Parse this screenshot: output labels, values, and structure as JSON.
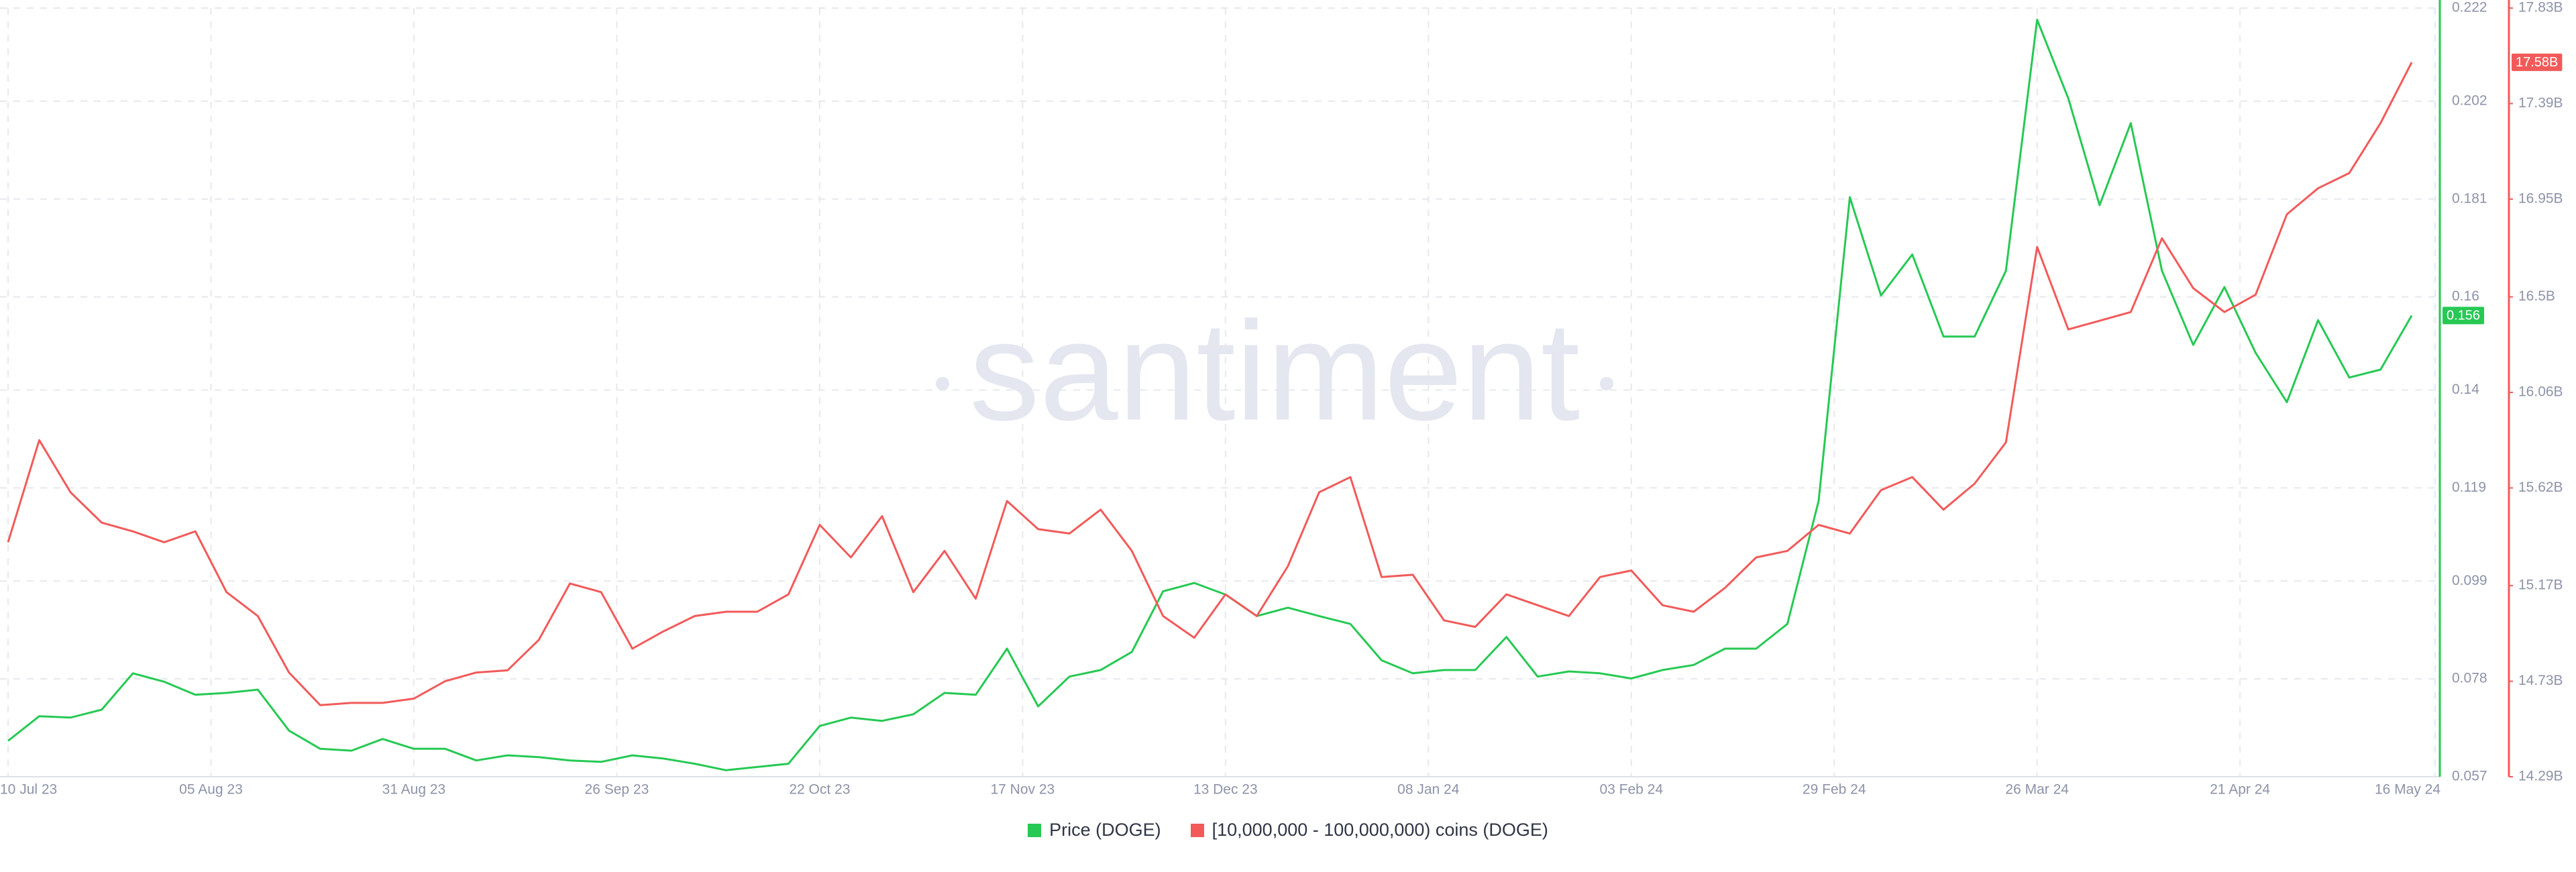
{
  "chart_data": {
    "type": "line",
    "watermark": "santiment",
    "grid": true,
    "xlim": [
      "2023-07-10",
      "2024-05-16"
    ],
    "xticks": [
      {
        "value": "2023-07-10",
        "label": "10 Jul 23"
      },
      {
        "value": "2023-08-05",
        "label": "05 Aug 23"
      },
      {
        "value": "2023-08-31",
        "label": "31 Aug 23"
      },
      {
        "value": "2023-09-26",
        "label": "26 Sep 23"
      },
      {
        "value": "2023-10-22",
        "label": "22 Oct 23"
      },
      {
        "value": "2023-11-17",
        "label": "17 Nov 23"
      },
      {
        "value": "2023-12-13",
        "label": "13 Dec 23"
      },
      {
        "value": "2024-01-08",
        "label": "08 Jan 24"
      },
      {
        "value": "2024-02-03",
        "label": "03 Feb 24"
      },
      {
        "value": "2024-02-29",
        "label": "29 Feb 24"
      },
      {
        "value": "2024-03-26",
        "label": "26 Mar 24"
      },
      {
        "value": "2024-04-21",
        "label": "21 Apr 24"
      },
      {
        "value": "2024-05-16",
        "label": "16 May 24"
      }
    ],
    "ylim": [
      0.057,
      0.222
    ],
    "yticks": [
      0.222,
      0.202,
      0.181,
      0.16,
      0.14,
      0.119,
      0.099,
      0.078,
      0.057
    ],
    "y2lim": [
      14.29,
      17.83
    ],
    "y2ticks": [
      {
        "value": 17.83,
        "label": "17.83B"
      },
      {
        "value": 17.39,
        "label": "17.39B"
      },
      {
        "value": 16.95,
        "label": "16.95B"
      },
      {
        "value": 16.5,
        "label": "16.5B"
      },
      {
        "value": 16.06,
        "label": "16.06B"
      },
      {
        "value": 15.62,
        "label": "15.62B"
      },
      {
        "value": 15.17,
        "label": "15.17B"
      },
      {
        "value": 14.73,
        "label": "14.73B"
      },
      {
        "value": 14.29,
        "label": "14.29B"
      }
    ],
    "x": [
      "2023-07-10",
      "2023-07-14",
      "2023-07-18",
      "2023-07-22",
      "2023-07-26",
      "2023-07-30",
      "2023-08-03",
      "2023-08-07",
      "2023-08-11",
      "2023-08-15",
      "2023-08-19",
      "2023-08-23",
      "2023-08-27",
      "2023-08-31",
      "2023-09-04",
      "2023-09-08",
      "2023-09-12",
      "2023-09-16",
      "2023-09-20",
      "2023-09-24",
      "2023-09-28",
      "2023-10-02",
      "2023-10-06",
      "2023-10-10",
      "2023-10-14",
      "2023-10-18",
      "2023-10-22",
      "2023-10-26",
      "2023-10-30",
      "2023-11-03",
      "2023-11-07",
      "2023-11-11",
      "2023-11-15",
      "2023-11-19",
      "2023-11-23",
      "2023-11-27",
      "2023-12-01",
      "2023-12-05",
      "2023-12-09",
      "2023-12-13",
      "2023-12-17",
      "2023-12-21",
      "2023-12-25",
      "2023-12-29",
      "2024-01-02",
      "2024-01-06",
      "2024-01-10",
      "2024-01-14",
      "2024-01-18",
      "2024-01-22",
      "2024-01-26",
      "2024-01-30",
      "2024-02-03",
      "2024-02-07",
      "2024-02-11",
      "2024-02-15",
      "2024-02-19",
      "2024-02-23",
      "2024-02-27",
      "2024-03-02",
      "2024-03-06",
      "2024-03-10",
      "2024-03-14",
      "2024-03-18",
      "2024-03-22",
      "2024-03-26",
      "2024-03-30",
      "2024-04-03",
      "2024-04-07",
      "2024-04-11",
      "2024-04-15",
      "2024-04-19",
      "2024-04-23",
      "2024-04-27",
      "2024-05-01",
      "2024-05-05",
      "2024-05-09",
      "2024-05-13"
    ],
    "series": [
      {
        "name": "Price (DOGE)",
        "color": "#26c953",
        "badge": {
          "value": 0.156,
          "label": "0.156"
        },
        "values": [
          0.0647,
          0.07,
          0.0697,
          0.0714,
          0.0792,
          0.0774,
          0.0746,
          0.075,
          0.0757,
          0.0669,
          0.063,
          0.0626,
          0.0651,
          0.063,
          0.063,
          0.0605,
          0.0616,
          0.0612,
          0.0605,
          0.0602,
          0.0616,
          0.0609,
          0.0598,
          0.0584,
          0.0591,
          0.0598,
          0.0679,
          0.0697,
          0.069,
          0.0704,
          0.075,
          0.0746,
          0.0845,
          0.0721,
          0.0785,
          0.0799,
          0.0838,
          0.0968,
          0.0986,
          0.0961,
          0.0915,
          0.0933,
          0.0915,
          0.0898,
          0.082,
          0.0792,
          0.0799,
          0.0799,
          0.087,
          0.0785,
          0.0796,
          0.0792,
          0.0781,
          0.0799,
          0.081,
          0.0845,
          0.0845,
          0.0898,
          0.1162,
          0.1814,
          0.1603,
          0.1691,
          0.1515,
          0.1515,
          0.1656,
          0.2195,
          0.2026,
          0.1797,
          0.1973,
          0.1656,
          0.1497,
          0.1621,
          0.148,
          0.1374,
          0.155,
          0.1427,
          0.1444,
          0.156
        ]
      },
      {
        "name": "[10,000,000 - 100,000,000) coins (DOGE)",
        "color": "#f25a5a",
        "axis": "y2",
        "badge": {
          "value": 17.58,
          "label": "17.58B"
        },
        "values": [
          15.37,
          15.84,
          15.6,
          15.46,
          15.42,
          15.37,
          15.42,
          15.14,
          15.03,
          14.77,
          14.62,
          14.63,
          14.63,
          14.65,
          14.73,
          14.77,
          14.78,
          14.92,
          15.18,
          15.14,
          14.88,
          14.96,
          15.03,
          15.05,
          15.05,
          15.13,
          15.45,
          15.3,
          15.49,
          15.14,
          15.33,
          15.11,
          15.56,
          15.43,
          15.41,
          15.52,
          15.33,
          15.03,
          14.93,
          15.13,
          15.03,
          15.26,
          15.6,
          15.67,
          15.21,
          15.22,
          15.01,
          14.98,
          15.13,
          15.08,
          15.03,
          15.21,
          15.24,
          15.08,
          15.05,
          15.16,
          15.3,
          15.33,
          15.45,
          15.41,
          15.61,
          15.67,
          15.52,
          15.64,
          15.83,
          16.73,
          16.35,
          16.39,
          16.43,
          16.77,
          16.54,
          16.43,
          16.51,
          16.88,
          17.0,
          17.07,
          17.3,
          17.58
        ]
      }
    ]
  }
}
